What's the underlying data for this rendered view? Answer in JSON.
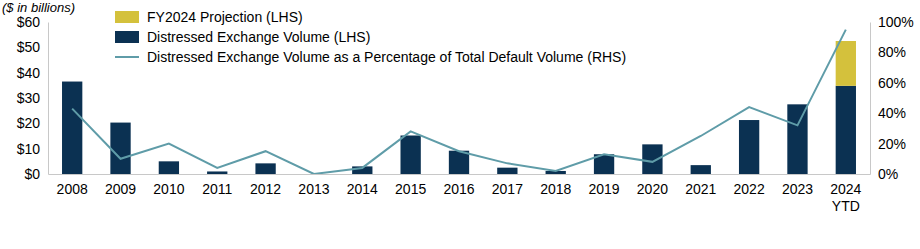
{
  "chart_data": {
    "type": "bar",
    "title": "($ in billions)",
    "categories": [
      "2008",
      "2009",
      "2010",
      "2011",
      "2012",
      "2013",
      "2014",
      "2015",
      "2016",
      "2017",
      "2018",
      "2019",
      "2020",
      "2021",
      "2022",
      "2023",
      "2024 YTD"
    ],
    "series": [
      {
        "name": "FY2024 Projection (LHS)",
        "type": "bar",
        "color": "#d4c13c",
        "values": [
          null,
          null,
          null,
          null,
          null,
          null,
          null,
          null,
          null,
          null,
          null,
          null,
          null,
          null,
          null,
          null,
          17.7
        ]
      },
      {
        "name": "Distressed Exchange Volume (LHS)",
        "type": "bar",
        "color": "#0b3152",
        "values": [
          36.5,
          20.3,
          5,
          1,
          4.2,
          0,
          3,
          15.2,
          9.2,
          2.5,
          1.2,
          7.8,
          11.7,
          3.5,
          21.3,
          27.5,
          34.8
        ]
      },
      {
        "name": "Distressed Exchange Volume as a Percentage of Total Default Volume (RHS)",
        "type": "line",
        "axis": "y2",
        "color": "#5f9ca8",
        "values": [
          43,
          10,
          20,
          4,
          15,
          0,
          4,
          28,
          15,
          7,
          2,
          13,
          8,
          25,
          44,
          32,
          95
        ]
      }
    ],
    "stacked": true,
    "legend": "top-left",
    "ylim": [
      0,
      60
    ],
    "yticks": [
      {
        "value": 0,
        "label": "$0"
      },
      {
        "value": 10,
        "label": "$10"
      },
      {
        "value": 20,
        "label": "$20"
      },
      {
        "value": 30,
        "label": "$30"
      },
      {
        "value": 40,
        "label": "$40"
      },
      {
        "value": 50,
        "label": "$50"
      },
      {
        "value": 60,
        "label": "$60"
      }
    ],
    "y2lim": [
      0,
      100
    ],
    "y2ticks": [
      {
        "value": 0,
        "label": "0%"
      },
      {
        "value": 20,
        "label": "20%"
      },
      {
        "value": 40,
        "label": "40%"
      },
      {
        "value": 60,
        "label": "60%"
      },
      {
        "value": 80,
        "label": "80%"
      },
      {
        "value": 100,
        "label": "100%"
      }
    ]
  }
}
